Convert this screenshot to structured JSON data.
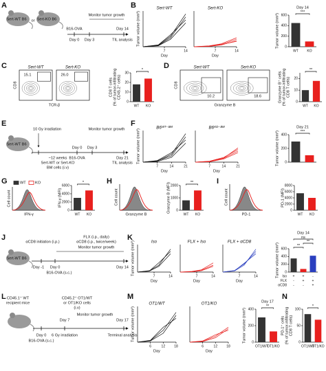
{
  "A": {
    "label": "A",
    "texts": [
      "Sert-WT B6",
      "or",
      "Sert-KO B6",
      "B16-OVA",
      "Day 0",
      "Day 3",
      "Monitor tumor growth",
      "Day 14",
      "TIL analysis"
    ]
  },
  "B": {
    "label": "B",
    "ylabel": "Tumor volume (mm³)",
    "xlabel": "Day",
    "x": [
      0,
      5,
      9,
      14
    ],
    "xlim": [
      0,
      14
    ],
    "xticks": [
      7,
      14
    ],
    "ylim": [
      0,
      1200
    ],
    "plots": [
      {
        "title": "Sert-WT",
        "color": "#111111",
        "series": [
          [
            0,
            40,
            300,
            1000
          ],
          [
            0,
            60,
            400,
            900
          ],
          [
            0,
            30,
            250,
            800
          ],
          [
            0,
            50,
            350,
            1100
          ]
        ]
      },
      {
        "title": "Sert-KO",
        "color": "#e8201e",
        "series": [
          [
            0,
            20,
            80,
            250
          ],
          [
            0,
            10,
            60,
            200
          ],
          [
            0,
            30,
            100,
            300
          ],
          [
            0,
            15,
            70,
            180
          ]
        ]
      }
    ],
    "bar": {
      "title": "Day 14",
      "categories": [
        "WT",
        "KO"
      ],
      "values": [
        450,
        100
      ],
      "colors": [
        "#333333",
        "#e8201e"
      ],
      "ylim": [
        0,
        600
      ],
      "yticks": [
        0,
        200,
        400,
        600
      ],
      "ylabel": [
        "Tumor volume (mm³)"
      ],
      "sig": [
        "***"
      ]
    }
  },
  "C": {
    "label": "C",
    "xlabel": "TCR-β",
    "ylabel": "CD8",
    "plots": [
      {
        "title": "Sert-WT",
        "number": "15.1"
      },
      {
        "title": "Sert-KO",
        "number": "26.0"
      }
    ],
    "bar": {
      "categories": [
        "WT",
        "KO"
      ],
      "values": [
        18,
        24
      ],
      "colors": [
        "#333333",
        "#e8201e"
      ],
      "ylim": [
        0,
        30
      ],
      "yticks": [
        0,
        10,
        20,
        30
      ],
      "ylabel": [
        "CD8 T cells",
        "(% of tumor-infiltrating",
        "CD45.2⁺ cells)"
      ],
      "sig": [
        "*"
      ]
    }
  },
  "D": {
    "label": "D",
    "xlabel": "Granzyme B",
    "ylabel": "CD8",
    "plots": [
      {
        "title": "Sert-WT",
        "number": "10.2"
      },
      {
        "title": "Sert-KO",
        "number": "18.6"
      }
    ],
    "bar": {
      "categories": [
        "WT",
        "KO"
      ],
      "values": [
        10,
        18
      ],
      "colors": [
        "#333333",
        "#e8201e"
      ],
      "ylim": [
        0,
        25
      ],
      "yticks": [
        0,
        10,
        20
      ],
      "ylabel": [
        "Granzyme B⁺ cells",
        "(% of tumor-infiltrating",
        "CD8 T cells)"
      ],
      "sig": [
        "**"
      ]
    }
  },
  "E": {
    "label": "E",
    "texts": [
      "Sert-WT B6",
      "10 Gy irradiation",
      "~12 weeks",
      "Sert-WT or Sert-KO",
      "BM cells (i.v)",
      "Day 0",
      "B16-OVA",
      "Day 3",
      "Monitor tumor growth",
      "Day 21",
      "TIL analysis"
    ]
  },
  "F": {
    "label": "F",
    "ylabel": "Tumor volume (mm³)",
    "xlabel": "Day",
    "x": [
      0,
      7,
      14,
      21
    ],
    "xlim": [
      0,
      21
    ],
    "xticks": [
      7,
      14,
      21
    ],
    "ylim": [
      0,
      1000
    ],
    "plots": [
      {
        "title": "B6ᵂᵀ⁻ᴮᴹ",
        "color": "#111111",
        "series": [
          [
            0,
            30,
            250,
            900
          ],
          [
            0,
            50,
            300,
            700
          ],
          [
            0,
            40,
            200,
            800
          ],
          [
            0,
            20,
            150,
            600
          ]
        ]
      },
      {
        "title": "B6ᴷᴼ⁻ᴮᴹ",
        "color": "#e8201e",
        "series": [
          [
            0,
            20,
            120,
            350
          ],
          [
            0,
            30,
            150,
            400
          ],
          [
            0,
            10,
            100,
            300
          ],
          [
            0,
            25,
            130,
            450
          ]
        ]
      }
    ],
    "bar": {
      "title": "Day 21",
      "values": [
        300,
        100
      ],
      "colors": [
        "#333333",
        "#e8201e"
      ],
      "ylim": [
        0,
        400
      ],
      "yticks": [
        0,
        200,
        400
      ],
      "ylabel": [
        "Tumor volume (mm³)"
      ],
      "sig": [
        "***"
      ]
    }
  },
  "G": {
    "label": "G",
    "legend": [
      "WT",
      "KO"
    ],
    "xlabel": "IFN-γ",
    "ylabel": "Cell count",
    "bar": {
      "categories": [
        "WT",
        "KO"
      ],
      "values": [
        3000,
        4800
      ],
      "colors": [
        "#333333",
        "#e8201e"
      ],
      "ylim": [
        0,
        6000
      ],
      "yticks": [
        0,
        2000,
        4000,
        6000
      ],
      "ylabel": [
        "IFN-γ (MFI)"
      ],
      "sig": [
        "*"
      ]
    }
  },
  "H": {
    "label": "H",
    "xlabel": "Granzyme B",
    "ylabel": "Cell count",
    "bar": {
      "categories": [
        "WT",
        "KO"
      ],
      "values": [
        800,
        1600
      ],
      "colors": [
        "#333333",
        "#e8201e"
      ],
      "ylim": [
        0,
        2000
      ],
      "yticks": [
        0,
        1000,
        2000
      ],
      "ylabel": [
        "Granzyme B (MFI)"
      ],
      "sig": [
        "**"
      ]
    }
  },
  "I": {
    "label": "I",
    "xlabel": "PD-1",
    "ylabel": "Cell count",
    "bar": {
      "categories": [
        "WT",
        "KO"
      ],
      "values": [
        5500,
        4000
      ],
      "colors": [
        "#333333",
        "#e8201e"
      ],
      "ylim": [
        0,
        8000
      ],
      "yticks": [
        0,
        2000,
        4000,
        6000,
        8000
      ],
      "ylabel": [
        "PD-1 (MFI)"
      ]
    }
  },
  "J": {
    "label": "J",
    "texts": [
      "Sert-WT B6",
      "αCD8 initiation (i.p.)",
      "Day -1",
      "Day 0",
      "B16-OVA (s.c.)",
      "FLX (i.p., daily)",
      "αCD8 (i.p., twice/week)",
      "Monitor tumor growth",
      "Day 14"
    ]
  },
  "K": {
    "label": "K",
    "ylabel": "Tumor volume (mm³)",
    "xlabel": "Day",
    "x": [
      0,
      5,
      9,
      14
    ],
    "xlim": [
      0,
      14
    ],
    "xticks": [
      7,
      14
    ],
    "ylim": [
      0,
      1200
    ],
    "plots": [
      {
        "title": "Iso",
        "color": "#111111",
        "series": [
          [
            0,
            60,
            300,
            1000
          ],
          [
            0,
            40,
            250,
            800
          ],
          [
            0,
            50,
            400,
            900
          ]
        ]
      },
      {
        "title": "FLX + Iso",
        "color": "#e8201e",
        "series": [
          [
            0,
            20,
            80,
            300
          ],
          [
            0,
            10,
            60,
            250
          ],
          [
            0,
            30,
            100,
            400
          ]
        ]
      },
      {
        "title": "FLX + αCD8",
        "color": "#2a3fbf",
        "series": [
          [
            0,
            70,
            350,
            900
          ],
          [
            0,
            50,
            300,
            1000
          ],
          [
            0,
            60,
            380,
            800
          ]
        ]
      }
    ],
    "bar": {
      "title": "Day 14",
      "values": [
        350,
        80,
        420
      ],
      "colors": [
        "#333333",
        "#e8201e",
        "#2a3fbf"
      ],
      "ylim": [
        0,
        600
      ],
      "yticks": [
        0,
        200,
        400,
        600
      ],
      "ylabel": [
        "Tumor volume (mm³)"
      ],
      "sig": [
        "ns",
        "**",
        "**"
      ],
      "table": {
        "rows": [
          "Iso",
          "FLX",
          "αCD8"
        ],
        "cells": [
          [
            "+",
            "+",
            "-"
          ],
          [
            "-",
            "+",
            "+"
          ],
          [
            "-",
            "-",
            "+"
          ]
        ]
      }
    }
  },
  "L": {
    "label": "L",
    "texts": [
      "CD45.1⁺ WT",
      "recipient mice",
      "Boy J",
      "Day 0",
      "B16-OVA (s.c.)",
      "Day 7",
      "6 Gy irradiation",
      "CD45.2⁺ OT1/WT",
      "or OT1/KO cells",
      "(i.v)",
      "Monitor tumor growth",
      "Day 17",
      "Terminal analysis"
    ]
  },
  "M": {
    "label": "M",
    "ylabel": "Tumor volume (mm³)",
    "xlabel": "Day",
    "x": [
      0,
      6,
      12,
      18
    ],
    "xlim": [
      0,
      18
    ],
    "xticks": [
      6,
      12,
      18
    ],
    "ylim": [
      0,
      1200
    ],
    "plots": [
      {
        "title": "OT1/WT",
        "color": "#111111",
        "series": [
          [
            0,
            50,
            400,
            1000
          ],
          [
            0,
            60,
            500,
            800
          ],
          [
            0,
            40,
            300,
            900
          ]
        ]
      },
      {
        "title": "OT1/KO",
        "color": "#e8201e",
        "series": [
          [
            0,
            30,
            200,
            500
          ],
          [
            0,
            40,
            250,
            400
          ],
          [
            0,
            20,
            150,
            450
          ]
        ]
      }
    ],
    "bar": {
      "title": "Day 17",
      "categories": [
        "OT1/WT",
        "OT1/KO"
      ],
      "values": [
        300,
        130
      ],
      "colors": [
        "#333333",
        "#e8201e"
      ],
      "ylim": [
        0,
        400
      ],
      "yticks": [
        0,
        200,
        400
      ],
      "ylabel": [
        "Tumor volume (mm³)"
      ],
      "sig": [
        "**"
      ]
    }
  },
  "N": {
    "label": "N",
    "bar": {
      "categories": [
        "OT1/WT",
        "OT1/KO"
      ],
      "values": [
        85,
        68
      ],
      "colors": [
        "#333333",
        "#e8201e"
      ],
      "ylim": [
        0,
        100
      ],
      "yticks": [
        0,
        50,
        100
      ],
      "ylabel": [
        "PD-1⁺ cells",
        "(% of tumor-infiltrating",
        "CD8 T cells)"
      ],
      "sig": [
        "*"
      ]
    }
  }
}
